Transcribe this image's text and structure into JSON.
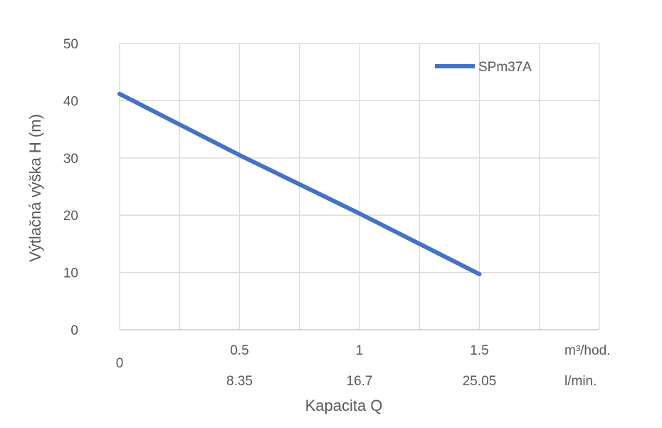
{
  "chart_data": {
    "type": "line",
    "ylabel": "Výtlačná výška H (m)",
    "xlabel": "Kapacita Q",
    "ylim": [
      0,
      50
    ],
    "y_ticks": [
      0,
      10,
      20,
      30,
      40,
      50
    ],
    "xlim": [
      0,
      2.0
    ],
    "x_origin_label": "0",
    "x_primary_ticks": [
      {
        "x": 0.5,
        "label": "0.5"
      },
      {
        "x": 1.0,
        "label": "1"
      },
      {
        "x": 1.5,
        "label": "1.5"
      }
    ],
    "x_primary_unit": "m³/hod.",
    "x_secondary_ticks": [
      {
        "x": 0.5,
        "label": "8.35"
      },
      {
        "x": 1.0,
        "label": "16.7"
      },
      {
        "x": 1.5,
        "label": "25.05"
      }
    ],
    "x_secondary_unit": "l/min.",
    "grid": true,
    "legend_position": "top-right",
    "series": [
      {
        "name": "SPm37A",
        "color": "#4472C4",
        "x": [
          0,
          0.5,
          1.0,
          1.5
        ],
        "y": [
          41.2,
          30.5,
          20.3,
          9.7
        ]
      }
    ]
  }
}
